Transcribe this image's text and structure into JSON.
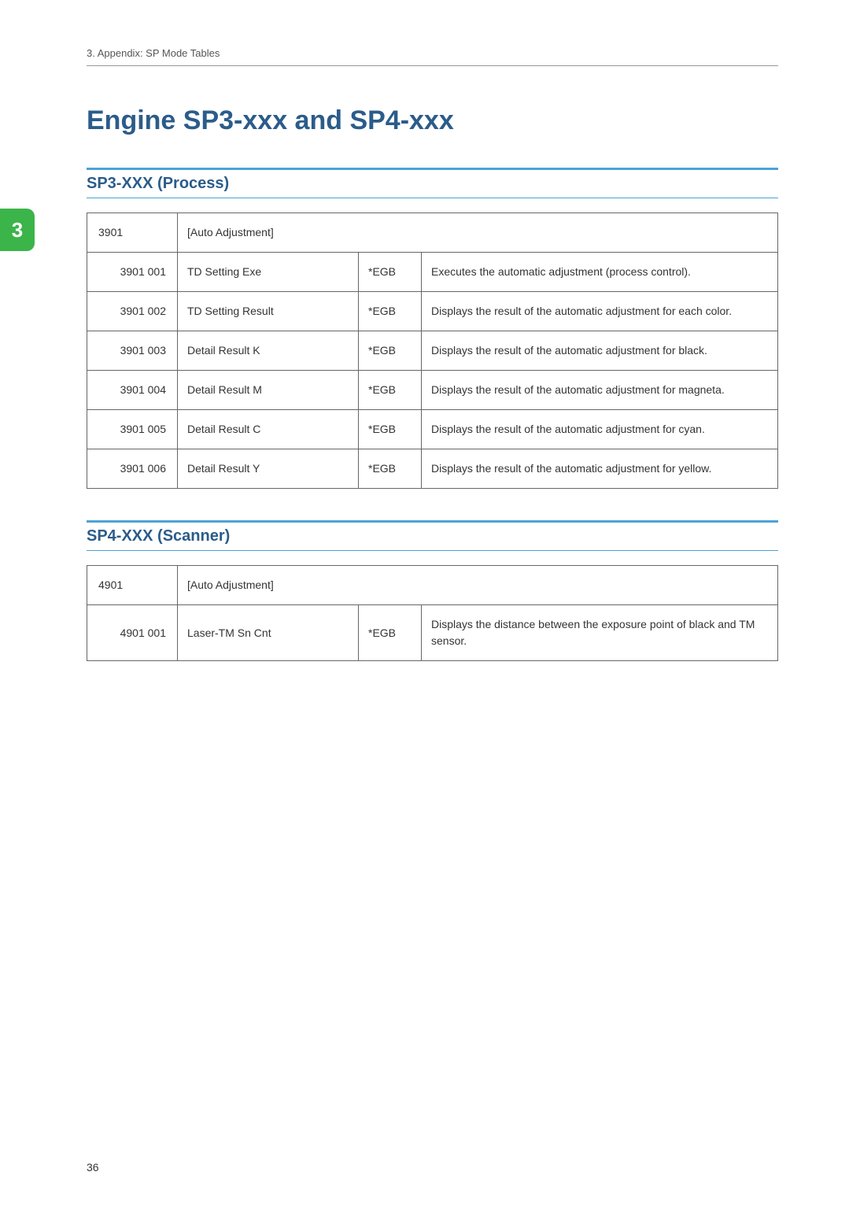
{
  "header": {
    "breadcrumb": "3. Appendix: SP Mode Tables"
  },
  "side_tab": {
    "label": "3",
    "bg_color": "#3bb44a"
  },
  "title": "Engine SP3-xxx and SP4-xxx",
  "section1": {
    "heading": "SP3-XXX (Process)",
    "group_code": "3901",
    "group_label": "[Auto Adjustment]",
    "rows": [
      {
        "code": "3901 001",
        "name": "TD Setting Exe",
        "tag": "*EGB",
        "desc": "Executes the automatic adjustment (process control)."
      },
      {
        "code": "3901 002",
        "name": "TD Setting Result",
        "tag": "*EGB",
        "desc": "Displays the result of the automatic adjustment for each color."
      },
      {
        "code": "3901 003",
        "name": "Detail Result K",
        "tag": "*EGB",
        "desc": "Displays the result of the automatic adjustment for black."
      },
      {
        "code": "3901 004",
        "name": "Detail Result M",
        "tag": "*EGB",
        "desc": "Displays the result of the automatic adjustment for magneta."
      },
      {
        "code": "3901 005",
        "name": "Detail Result C",
        "tag": "*EGB",
        "desc": "Displays the result of the automatic adjustment for cyan."
      },
      {
        "code": "3901 006",
        "name": "Detail Result Y",
        "tag": "*EGB",
        "desc": "Displays the result of the automatic adjustment for yellow."
      }
    ]
  },
  "section2": {
    "heading": "SP4-XXX (Scanner)",
    "group_code": "4901",
    "group_label": "[Auto Adjustment]",
    "rows": [
      {
        "code": "4901 001",
        "name": "Laser-TM Sn Cnt",
        "tag": "*EGB",
        "desc": "Displays the distance between the exposure point of black and TM sensor."
      }
    ]
  },
  "page_number": "36",
  "style": {
    "title_color": "#2b5c8a",
    "section_border_color": "#4da3d4",
    "table_border_color": "#666666",
    "body_text_color": "#333333",
    "header_text_color": "#555555",
    "font_family": "Arial",
    "title_fontsize": 34,
    "section_fontsize": 20,
    "cell_fontsize": 14,
    "col_widths": {
      "code": 115,
      "name": 230,
      "tag": 80
    }
  }
}
